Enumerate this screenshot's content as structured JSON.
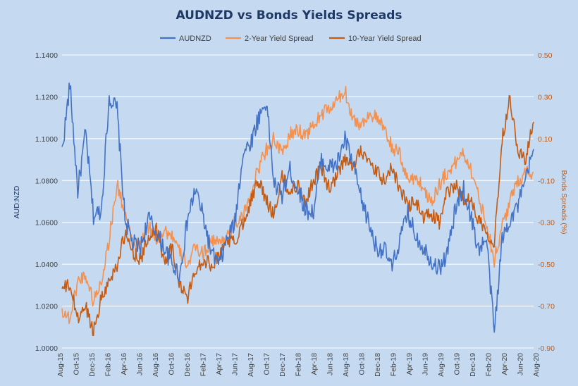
{
  "chart_data": {
    "type": "line",
    "title": "AUDNZD vs Bonds Yields Spreads",
    "left_axis": {
      "label": "AUD:NZD",
      "ylim": [
        1.0,
        1.14
      ],
      "ticks": [
        "1.0000",
        "1.0200",
        "1.0400",
        "1.0600",
        "1.0800",
        "1.1000",
        "1.1200",
        "1.1400"
      ],
      "tick_values": [
        1.0,
        1.02,
        1.04,
        1.06,
        1.08,
        1.1,
        1.12,
        1.14
      ]
    },
    "right_axis": {
      "label": "Bonds Spreads (%)",
      "ylim": [
        -0.9,
        0.5
      ],
      "ticks": [
        "-0.90",
        "-0.70",
        "-0.50",
        "-0.30",
        "-0.10",
        "0.10",
        "0.30",
        "0.50"
      ],
      "tick_values": [
        -0.9,
        -0.7,
        -0.5,
        -0.3,
        -0.1,
        0.1,
        0.3,
        0.5
      ]
    },
    "x_ticks": [
      "Aug-15",
      "Oct-15",
      "Dec-15",
      "Feb-16",
      "Apr-16",
      "Jun-16",
      "Aug-16",
      "Oct-16",
      "Dec-16",
      "Feb-17",
      "Apr-17",
      "Jun-17",
      "Aug-17",
      "Oct-17",
      "Dec-17",
      "Feb-18",
      "Apr-18",
      "Jun-18",
      "Aug-18",
      "Oct-18",
      "Dec-18",
      "Feb-19",
      "Apr-19",
      "Jun-19",
      "Aug-19",
      "Oct-19",
      "Dec-19",
      "Feb-20",
      "Apr-20",
      "Jun-20",
      "Aug-20"
    ],
    "grid": true,
    "legend_position": "top",
    "series": [
      {
        "name": "AUDNZD",
        "axis": "left",
        "color": "#4472c4",
        "x": [
          "Aug-15",
          "Sep-15",
          "Oct-15",
          "Nov-15",
          "Dec-15",
          "Jan-16",
          "Feb-16",
          "Mar-16",
          "Apr-16",
          "May-16",
          "Jun-16",
          "Jul-16",
          "Aug-16",
          "Sep-16",
          "Oct-16",
          "Nov-16",
          "Dec-16",
          "Jan-17",
          "Feb-17",
          "Mar-17",
          "Apr-17",
          "May-17",
          "Jun-17",
          "Jul-17",
          "Aug-17",
          "Sep-17",
          "Oct-17",
          "Nov-17",
          "Dec-17",
          "Jan-18",
          "Feb-18",
          "Mar-18",
          "Apr-18",
          "May-18",
          "Jun-18",
          "Jul-18",
          "Aug-18",
          "Sep-18",
          "Oct-18",
          "Nov-18",
          "Dec-18",
          "Jan-19",
          "Feb-19",
          "Mar-19",
          "Apr-19",
          "May-19",
          "Jun-19",
          "Jul-19",
          "Aug-19",
          "Sep-19",
          "Oct-19",
          "Nov-19",
          "Dec-19",
          "Jan-20",
          "Feb-20",
          "Mar-20",
          "Apr-20",
          "May-20",
          "Jun-20",
          "Jul-20",
          "Aug-20"
        ],
        "values": [
          1.094,
          1.126,
          1.075,
          1.103,
          1.063,
          1.066,
          1.12,
          1.114,
          1.062,
          1.05,
          1.048,
          1.062,
          1.055,
          1.048,
          1.04,
          1.035,
          1.062,
          1.076,
          1.062,
          1.045,
          1.04,
          1.052,
          1.06,
          1.093,
          1.098,
          1.11,
          1.118,
          1.078,
          1.073,
          1.085,
          1.076,
          1.066,
          1.065,
          1.09,
          1.086,
          1.088,
          1.1,
          1.088,
          1.072,
          1.06,
          1.048,
          1.047,
          1.038,
          1.052,
          1.064,
          1.054,
          1.048,
          1.042,
          1.038,
          1.045,
          1.065,
          1.077,
          1.063,
          1.047,
          1.052,
          1.008,
          1.052,
          1.062,
          1.068,
          1.08,
          1.095
        ]
      },
      {
        "name": "2-Year Yield Spread",
        "axis": "right",
        "color": "#f4914f",
        "x": [
          "Aug-15",
          "Sep-15",
          "Oct-15",
          "Nov-15",
          "Dec-15",
          "Jan-16",
          "Feb-16",
          "Mar-16",
          "Apr-16",
          "May-16",
          "Jun-16",
          "Jul-16",
          "Aug-16",
          "Sep-16",
          "Oct-16",
          "Nov-16",
          "Dec-16",
          "Jan-17",
          "Feb-17",
          "Mar-17",
          "Apr-17",
          "May-17",
          "Jun-17",
          "Jul-17",
          "Aug-17",
          "Sep-17",
          "Oct-17",
          "Nov-17",
          "Dec-17",
          "Jan-18",
          "Feb-18",
          "Mar-18",
          "Apr-18",
          "May-18",
          "Jun-18",
          "Jul-18",
          "Aug-18",
          "Sep-18",
          "Oct-18",
          "Nov-18",
          "Dec-18",
          "Jan-19",
          "Feb-19",
          "Mar-19",
          "Apr-19",
          "May-19",
          "Jun-19",
          "Jul-19",
          "Aug-19",
          "Sep-19",
          "Oct-19",
          "Nov-19",
          "Dec-19",
          "Jan-20",
          "Feb-20",
          "Mar-20",
          "Apr-20",
          "May-20",
          "Jun-20",
          "Jul-20",
          "Aug-20"
        ],
        "values": [
          -0.72,
          -0.76,
          -0.58,
          -0.55,
          -0.68,
          -0.58,
          -0.38,
          -0.12,
          -0.25,
          -0.42,
          -0.4,
          -0.32,
          -0.38,
          -0.34,
          -0.36,
          -0.45,
          -0.5,
          -0.42,
          -0.45,
          -0.38,
          -0.4,
          -0.36,
          -0.3,
          -0.28,
          -0.16,
          -0.04,
          0.05,
          0.1,
          0.02,
          0.12,
          0.14,
          0.12,
          0.16,
          0.22,
          0.24,
          0.28,
          0.33,
          0.2,
          0.16,
          0.22,
          0.2,
          0.14,
          0.06,
          0.02,
          -0.1,
          -0.08,
          -0.14,
          -0.2,
          -0.12,
          -0.06,
          -0.02,
          0.04,
          -0.04,
          -0.18,
          -0.3,
          -0.48,
          -0.32,
          -0.2,
          -0.1,
          -0.06,
          -0.06
        ]
      },
      {
        "name": "10-Year Yield Spread",
        "axis": "right",
        "color": "#c55a11",
        "x": [
          "Aug-15",
          "Sep-15",
          "Oct-15",
          "Nov-15",
          "Dec-15",
          "Jan-16",
          "Feb-16",
          "Mar-16",
          "Apr-16",
          "May-16",
          "Jun-16",
          "Jul-16",
          "Aug-16",
          "Sep-16",
          "Oct-16",
          "Nov-16",
          "Dec-16",
          "Jan-17",
          "Feb-17",
          "Mar-17",
          "Apr-17",
          "May-17",
          "Jun-17",
          "Jul-17",
          "Aug-17",
          "Sep-17",
          "Oct-17",
          "Nov-17",
          "Dec-17",
          "Jan-18",
          "Feb-18",
          "Mar-18",
          "Apr-18",
          "May-18",
          "Jun-18",
          "Jul-18",
          "Aug-18",
          "Sep-18",
          "Oct-18",
          "Nov-18",
          "Dec-18",
          "Jan-19",
          "Feb-19",
          "Mar-19",
          "Apr-19",
          "May-19",
          "Jun-19",
          "Jul-19",
          "Aug-19",
          "Sep-19",
          "Oct-19",
          "Nov-19",
          "Dec-19",
          "Jan-20",
          "Feb-20",
          "Mar-20",
          "Apr-20",
          "May-20",
          "Jun-20",
          "Jul-20",
          "Aug-20"
        ],
        "values": [
          -0.62,
          -0.6,
          -0.76,
          -0.7,
          -0.82,
          -0.66,
          -0.58,
          -0.5,
          -0.36,
          -0.44,
          -0.48,
          -0.38,
          -0.32,
          -0.48,
          -0.42,
          -0.6,
          -0.66,
          -0.52,
          -0.48,
          -0.5,
          -0.46,
          -0.38,
          -0.4,
          -0.3,
          -0.2,
          -0.1,
          -0.2,
          -0.26,
          -0.08,
          -0.16,
          -0.12,
          -0.2,
          -0.1,
          -0.04,
          -0.14,
          -0.08,
          0.0,
          -0.04,
          0.06,
          -0.02,
          -0.06,
          -0.1,
          -0.04,
          -0.14,
          -0.22,
          -0.2,
          -0.28,
          -0.26,
          -0.3,
          -0.16,
          -0.12,
          -0.18,
          -0.2,
          -0.28,
          -0.34,
          -0.4,
          0.1,
          0.3,
          0.04,
          0.0,
          0.18
        ]
      }
    ]
  }
}
